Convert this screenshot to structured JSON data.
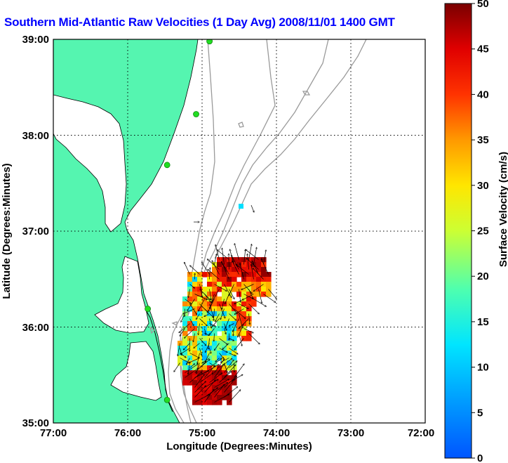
{
  "title": "Southern Mid-Atlantic Raw Velocities (1 Day Avg) 2008/11/01 1400 GMT",
  "map": {
    "xlabel": "Longitude (Degrees:Minutes)",
    "ylabel": "Latitude (Degrees:Minutes)",
    "x_ticks": [
      "77:00",
      "76:00",
      "75:00",
      "74:00",
      "73:00",
      "72:00"
    ],
    "y_ticks": [
      "39:00",
      "38:00",
      "37:00",
      "36:00",
      "35:00"
    ],
    "lon_range": [
      -77,
      -72
    ],
    "lat_range": [
      35,
      39
    ],
    "grid": "dotted",
    "colors": {
      "land": "#55f5b0",
      "water": "#ffffff",
      "coast": "#000000",
      "isobath": "#9a9a9a",
      "station": "#22dd22"
    },
    "stations": [
      {
        "lon": -74.9,
        "lat": 38.98
      },
      {
        "lon": -75.08,
        "lat": 38.22
      },
      {
        "lon": -75.47,
        "lat": 37.69
      },
      {
        "lon": -75.73,
        "lat": 36.19
      },
      {
        "lon": -75.47,
        "lat": 35.24
      }
    ]
  },
  "colorbar": {
    "label": "Surface Velocity (cm/s)",
    "ticks": [
      "0",
      "5",
      "10",
      "15",
      "20",
      "25",
      "30",
      "35",
      "40",
      "45",
      "50"
    ],
    "range": [
      0,
      50
    ]
  }
}
